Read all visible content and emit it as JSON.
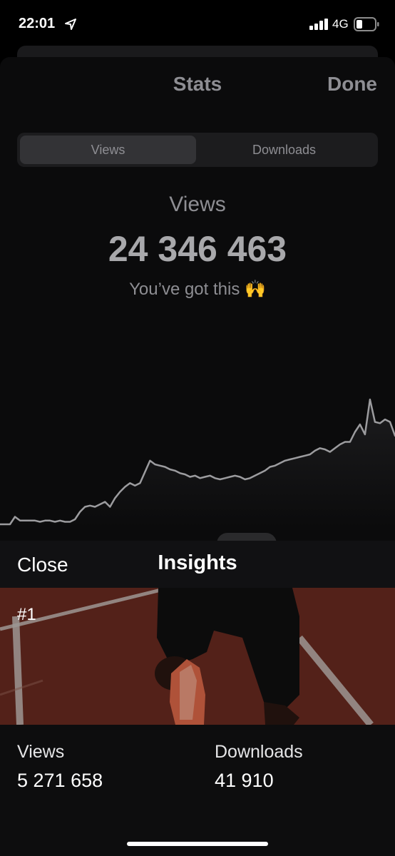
{
  "status_bar": {
    "time": "22:01",
    "network": "4G",
    "icons": [
      "location-arrow-icon",
      "cellular-signal-icon",
      "battery-icon"
    ]
  },
  "stats_sheet": {
    "title": "Stats",
    "done_label": "Done",
    "segments": [
      {
        "label": "Views",
        "selected": true
      },
      {
        "label": "Downloads",
        "selected": false
      }
    ],
    "metric_label": "Views",
    "metric_value": "24 346 463",
    "caption": "You’ve got this 🙌"
  },
  "chart_data": {
    "type": "area",
    "title": "",
    "xlabel": "",
    "ylabel": "",
    "grid": false,
    "legend": "none",
    "y_range": [
      0,
      100
    ],
    "series": [
      {
        "values": [
          0,
          0,
          0,
          6,
          3,
          3,
          3,
          3,
          2,
          3,
          3,
          2,
          3,
          2,
          2,
          4,
          10,
          14,
          15,
          14,
          16,
          18,
          14,
          21,
          26,
          30,
          33,
          31,
          33,
          42,
          51,
          48,
          47,
          46,
          44,
          43,
          41,
          40,
          38,
          39,
          37,
          38,
          39,
          37,
          36,
          37,
          38,
          39,
          38,
          36,
          37,
          39,
          41,
          43,
          46,
          47,
          49,
          51,
          52,
          53,
          54,
          55,
          56,
          59,
          61,
          60,
          58,
          61,
          64,
          66,
          66,
          74,
          80,
          72,
          100,
          82,
          81,
          84,
          82,
          71
        ]
      }
    ],
    "colors": {
      "line": "#9c9c9f",
      "fill_top": "#1c1c1e",
      "fill_bottom": "#0b0b0c"
    }
  },
  "insights": {
    "close_label": "Close",
    "title": "Insights",
    "rank": "#1",
    "stats": [
      {
        "label": "Views",
        "value": "5 271 658"
      },
      {
        "label": "Downloads",
        "value": "41 910"
      }
    ]
  }
}
